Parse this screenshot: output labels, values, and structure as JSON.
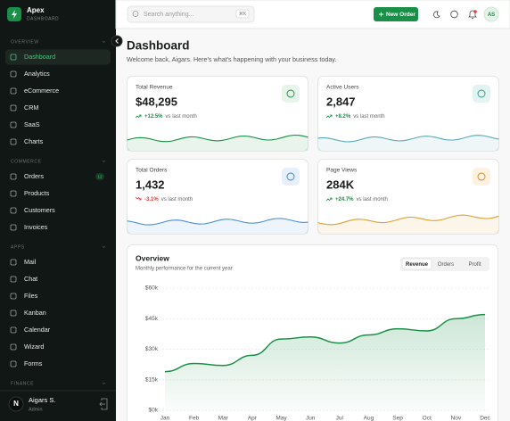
{
  "sidebar": {
    "brand": "Apex",
    "brand_sub": "DASHBOARD",
    "sections": [
      {
        "title": "OVERVIEW",
        "items": [
          {
            "label": "Dashboard"
          },
          {
            "label": "Analytics"
          },
          {
            "label": "eCommerce"
          },
          {
            "label": "CRM"
          },
          {
            "label": "SaaS"
          },
          {
            "label": "Charts"
          }
        ]
      },
      {
        "title": "COMMERCE",
        "items": [
          {
            "label": "Orders",
            "badge": "12"
          },
          {
            "label": "Products"
          },
          {
            "label": "Customers"
          },
          {
            "label": "Invoices"
          }
        ]
      },
      {
        "title": "APPS",
        "items": [
          {
            "label": "Mail"
          },
          {
            "label": "Chat"
          },
          {
            "label": "Files"
          },
          {
            "label": "Kanban"
          },
          {
            "label": "Calendar"
          },
          {
            "label": "Wizard"
          },
          {
            "label": "Forms"
          }
        ]
      },
      {
        "title": "FINANCE",
        "items": []
      }
    ],
    "user": {
      "initial": "N",
      "name": "Aigars S.",
      "role": "Admin"
    }
  },
  "topbar": {
    "search_placeholder": "Search anything...",
    "shortcut": "⌘K",
    "button": "New Order",
    "avatar": "AS"
  },
  "page": {
    "title": "Dashboard",
    "subtitle": "Welcome back, Aigars. Here's what's happening with your business today."
  },
  "cards": [
    {
      "label": "Total Revenue",
      "value": "$48,295",
      "change": "+12.5%",
      "note": "vs last month"
    },
    {
      "label": "Active Users",
      "value": "2,847",
      "change": "+8.2%",
      "note": "vs last month"
    },
    {
      "label": "Total Orders",
      "value": "1,432",
      "change": "-3.1%",
      "note": "vs last month"
    },
    {
      "label": "Page Views",
      "value": "284K",
      "change": "+24.7%",
      "note": "vs last month"
    }
  ],
  "overview_tabs": [
    "Revenue",
    "Orders",
    "Profit"
  ],
  "chart_data": {
    "type": "area",
    "title": "Overview",
    "subtitle": "Monthly performance for the current year",
    "categories": [
      "Jan",
      "Feb",
      "Mar",
      "Apr",
      "May",
      "Jun",
      "Jul",
      "Aug",
      "Sep",
      "Oct",
      "Nov",
      "Dec"
    ],
    "values": [
      19,
      23,
      22,
      27,
      35,
      36,
      33,
      37,
      40,
      39,
      45,
      47
    ],
    "color": "#1a8f47",
    "ylim": [
      0,
      60
    ],
    "yticks": [
      {
        "value": 0,
        "label": "$0k"
      },
      {
        "value": 15,
        "label": "$15k"
      },
      {
        "value": 30,
        "label": "$30k"
      },
      {
        "value": 45,
        "label": "$45k"
      },
      {
        "value": 60,
        "label": "$60k"
      }
    ],
    "grid": true
  }
}
